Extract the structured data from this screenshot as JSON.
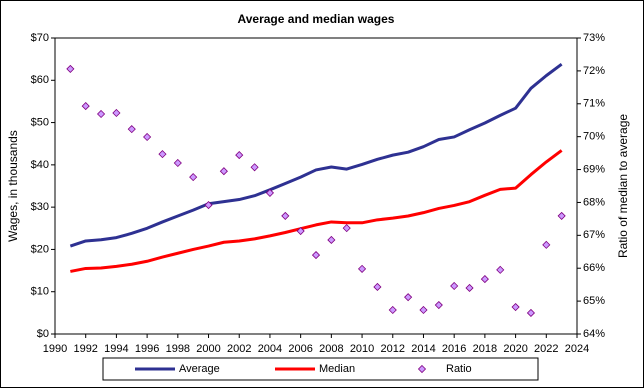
{
  "chart_data": {
    "type": "line",
    "title": "Average and median wages",
    "y_label": "Wages, in thousands",
    "y2_label": "Ratio of median to average",
    "x": [
      1991,
      1992,
      1993,
      1994,
      1995,
      1996,
      1997,
      1998,
      1999,
      2000,
      2001,
      2002,
      2003,
      2004,
      2005,
      2006,
      2007,
      2008,
      2009,
      2010,
      2011,
      2012,
      2013,
      2014,
      2015,
      2016,
      2017,
      2018,
      2019,
      2020,
      2021,
      2022,
      2023
    ],
    "xlim": [
      1990,
      2024
    ],
    "xticks": [
      1990,
      1992,
      1994,
      1996,
      1998,
      2000,
      2002,
      2004,
      2006,
      2008,
      2010,
      2012,
      2014,
      2016,
      2018,
      2020,
      2022,
      2024
    ],
    "ylim": [
      0,
      70
    ],
    "yticks": [
      {
        "value": 0,
        "label": "$0"
      },
      {
        "value": 10,
        "label": "$10"
      },
      {
        "value": 20,
        "label": "$20"
      },
      {
        "value": 30,
        "label": "$30"
      },
      {
        "value": 40,
        "label": "$40"
      },
      {
        "value": 50,
        "label": "$50"
      },
      {
        "value": 60,
        "label": "$60"
      },
      {
        "value": 70,
        "label": "$70"
      }
    ],
    "y2lim": [
      64,
      73
    ],
    "y2ticks": [
      {
        "value": 64,
        "label": "64%"
      },
      {
        "value": 65,
        "label": "65%"
      },
      {
        "value": 66,
        "label": "66%"
      },
      {
        "value": 67,
        "label": "67%"
      },
      {
        "value": 68,
        "label": "68%"
      },
      {
        "value": 69,
        "label": "69%"
      },
      {
        "value": 70,
        "label": "70%"
      },
      {
        "value": 71,
        "label": "71%"
      },
      {
        "value": 72,
        "label": "72%"
      },
      {
        "value": 73,
        "label": "73%"
      }
    ],
    "grid": false,
    "legend": "bottom",
    "series": [
      {
        "name": "Average",
        "color": "#2e3192",
        "mark": "line",
        "values": [
          20.8,
          22,
          22.3,
          22.8,
          23.8,
          25,
          26.5,
          27.9,
          29.3,
          30.8,
          31.3,
          31.8,
          32.7,
          34.1,
          35.6,
          37.1,
          38.8,
          39.5,
          39.0,
          40.1,
          41.3,
          42.3,
          43.0,
          44.3,
          46.0,
          46.6,
          48.3,
          49.9,
          51.7,
          53.4,
          58.1,
          61.1,
          63.8
        ]
      },
      {
        "name": "Median",
        "color": "#ff0000",
        "mark": "line",
        "values": [
          14.8,
          15.5,
          15.6,
          16.0,
          16.5,
          17.2,
          18.2,
          19.1,
          20.0,
          20.8,
          21.7,
          22.0,
          22.5,
          23.2,
          24.0,
          24.9,
          25.8,
          26.5,
          26.3,
          26.3,
          27.0,
          27.4,
          27.9,
          28.7,
          29.7,
          30.4,
          31.3,
          32.8,
          34.2,
          34.5,
          37.7,
          40.7,
          43.4
        ]
      },
      {
        "name": "Ratio",
        "color": "#cc99ff",
        "mark": "diamond",
        "axis": "y2",
        "values": [
          72.06,
          70.93,
          70.69,
          70.72,
          70.23,
          69.99,
          69.47,
          69.2,
          68.77,
          67.92,
          68.95,
          69.44,
          69.07,
          68.29,
          67.59,
          67.13,
          66.4,
          66.86,
          67.22,
          65.98,
          65.43,
          64.73,
          65.12,
          64.73,
          64.88,
          65.46,
          65.4,
          65.67,
          65.95,
          64.82,
          64.64,
          66.71,
          67.59
        ]
      }
    ]
  }
}
